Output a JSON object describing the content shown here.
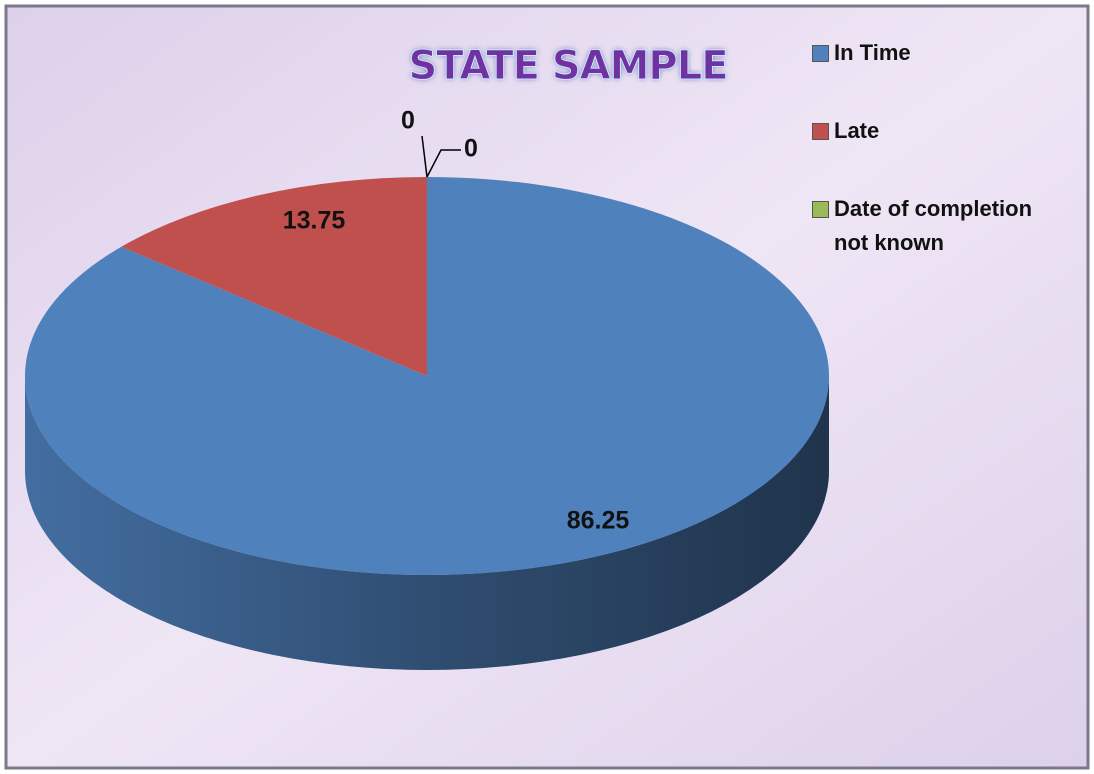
{
  "chart_data": {
    "type": "pie3d",
    "title": "STATE SAMPLE",
    "categories": [
      "In Time",
      "Late",
      "Date of completion not known",
      null
    ],
    "values": [
      86.25,
      13.75,
      0,
      0
    ],
    "colors": [
      "#4f81bd",
      "#c0504d",
      "#9bbb59"
    ],
    "legend": "right"
  }
}
